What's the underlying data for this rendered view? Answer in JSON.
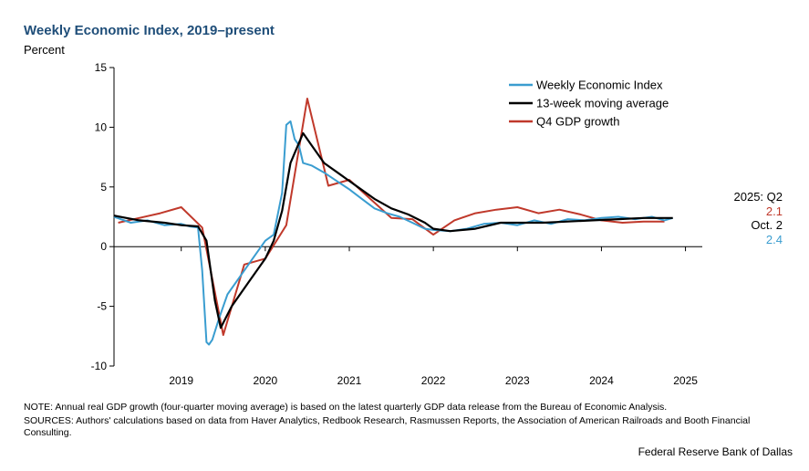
{
  "header": {
    "title": "Weekly Economic Index, 2019–present",
    "ylabel": "Percent"
  },
  "chart_data": {
    "type": "line",
    "title": "Weekly Economic Index, 2019–present",
    "ylabel": "Percent",
    "ylim": [
      -10,
      15
    ],
    "xlim": [
      2018.2,
      2025.2
    ],
    "yticks": [
      "15",
      "10",
      "5",
      "0",
      "-5",
      "-10"
    ],
    "xticks": [
      "2019",
      "2020",
      "2021",
      "2022",
      "2023",
      "2024",
      "2025"
    ],
    "grid": false,
    "legend_position": "top-right",
    "series": [
      {
        "name": "Weekly Economic Index",
        "color": "#3a9dd0",
        "x": [
          2018.2,
          2018.4,
          2018.6,
          2018.8,
          2019.0,
          2019.1,
          2019.2,
          2019.25,
          2019.3,
          2019.33,
          2019.37,
          2019.45,
          2019.55,
          2019.7,
          2019.85,
          2020.0,
          2020.1,
          2020.2,
          2020.25,
          2020.3,
          2020.35,
          2020.4,
          2020.45,
          2020.55,
          2020.7,
          2020.85,
          2021.0,
          2021.15,
          2021.3,
          2021.45,
          2021.6,
          2021.75,
          2021.9,
          2022.0,
          2022.2,
          2022.4,
          2022.6,
          2022.8,
          2023.0,
          2023.2,
          2023.4,
          2023.6,
          2023.8,
          2024.0,
          2024.2,
          2024.4,
          2024.6,
          2024.75,
          2024.85
        ],
        "values": [
          2.5,
          2.0,
          2.2,
          1.8,
          1.9,
          1.7,
          1.6,
          -2.0,
          -8.0,
          -8.2,
          -7.8,
          -6.0,
          -4.0,
          -2.5,
          -1.0,
          0.5,
          1.0,
          4.5,
          10.2,
          10.5,
          9.0,
          8.5,
          7.0,
          6.8,
          6.2,
          5.5,
          4.8,
          4.0,
          3.2,
          2.8,
          2.5,
          2.0,
          1.5,
          1.4,
          1.3,
          1.5,
          1.9,
          2.0,
          1.8,
          2.2,
          1.9,
          2.3,
          2.2,
          2.4,
          2.5,
          2.3,
          2.5,
          2.2,
          2.4
        ]
      },
      {
        "name": "13-week moving average",
        "color": "#000000",
        "x": [
          2018.2,
          2018.5,
          2018.8,
          2019.0,
          2019.2,
          2019.3,
          2019.4,
          2019.47,
          2019.6,
          2019.8,
          2020.0,
          2020.1,
          2020.2,
          2020.3,
          2020.45,
          2020.55,
          2020.7,
          2020.9,
          2021.1,
          2021.3,
          2021.5,
          2021.7,
          2021.9,
          2022.0,
          2022.2,
          2022.5,
          2022.8,
          2023.0,
          2023.3,
          2023.6,
          2023.9,
          2024.2,
          2024.5,
          2024.85
        ],
        "values": [
          2.6,
          2.2,
          2.0,
          1.8,
          1.7,
          0.5,
          -4.5,
          -6.8,
          -5.0,
          -3.0,
          -1.0,
          0.5,
          3.0,
          7.0,
          9.5,
          8.5,
          7.0,
          6.0,
          5.0,
          4.0,
          3.2,
          2.7,
          2.0,
          1.5,
          1.3,
          1.5,
          2.0,
          2.0,
          2.0,
          2.1,
          2.2,
          2.3,
          2.4,
          2.4
        ]
      },
      {
        "name": "Q4 GDP growth",
        "color": "#c0392b",
        "x": [
          2018.25,
          2018.5,
          2018.75,
          2019.0,
          2019.25,
          2019.5,
          2019.75,
          2020.0,
          2020.25,
          2020.5,
          2020.75,
          2021.0,
          2021.25,
          2021.5,
          2021.75,
          2022.0,
          2022.25,
          2022.5,
          2022.75,
          2023.0,
          2023.25,
          2023.5,
          2023.75,
          2024.0,
          2024.25,
          2024.5,
          2024.75
        ],
        "values": [
          2.0,
          2.4,
          2.8,
          3.3,
          1.6,
          -7.4,
          -1.5,
          -1.0,
          1.8,
          12.4,
          5.1,
          5.6,
          4.0,
          2.4,
          2.3,
          1.0,
          2.2,
          2.8,
          3.1,
          3.3,
          2.8,
          3.1,
          2.7,
          2.2,
          2.0,
          2.1,
          2.1
        ]
      }
    ],
    "annotations": [
      {
        "label": "2025: Q2",
        "color": "#000000"
      },
      {
        "label": "2.1",
        "color": "#c0392b"
      },
      {
        "label": "Oct. 2",
        "color": "#000000"
      },
      {
        "label": "2.4",
        "color": "#3a9dd0"
      }
    ]
  },
  "notes": {
    "note": "NOTE: Annual real GDP growth (four-quarter moving average) is based on the latest quarterly GDP data release from the Bureau of Economic Analysis.",
    "sources": "SOURCES: Authors' calculations based on data from Haver Analytics, Redbook Research, Rasmussen Reports, the Association of American Railroads and Booth Financial Consulting.",
    "org": "Federal Reserve Bank of Dallas"
  }
}
